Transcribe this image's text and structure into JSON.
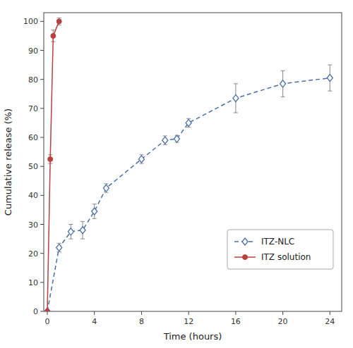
{
  "chart_data": {
    "type": "line",
    "xlabel": "Time (hours)",
    "ylabel": "Cumulative release (%)",
    "xlim": [
      -0.3,
      25
    ],
    "ylim": [
      0,
      103
    ],
    "xticks": [
      0,
      4,
      8,
      12,
      16,
      20,
      24
    ],
    "yticks": [
      0,
      10,
      20,
      30,
      40,
      50,
      60,
      70,
      80,
      90,
      100
    ],
    "grid": false,
    "legend": "lower right",
    "series": [
      {
        "name": "ITZ-NLC",
        "color": "#4a6fa5",
        "marker": "diamond",
        "line_style": "dashed",
        "x": [
          0,
          1,
          2,
          3,
          4,
          5,
          8,
          10,
          11,
          12,
          16,
          20,
          24
        ],
        "values": [
          0,
          22,
          27.5,
          28,
          34.5,
          42.5,
          52.5,
          59,
          59.5,
          65,
          73.5,
          78.5,
          80.5
        ],
        "errors": [
          0,
          1.5,
          2.5,
          3.0,
          2.5,
          1.5,
          1.5,
          1.5,
          1.2,
          1.5,
          5.0,
          4.5,
          4.5
        ]
      },
      {
        "name": "ITZ solution",
        "color": "#b94040",
        "marker": "circle",
        "line_style": "solid",
        "x": [
          0,
          0.25,
          0.5,
          1.0
        ],
        "values": [
          0,
          52.5,
          95,
          100
        ],
        "errors": [
          0,
          1.5,
          2.0,
          1.2
        ]
      }
    ]
  }
}
